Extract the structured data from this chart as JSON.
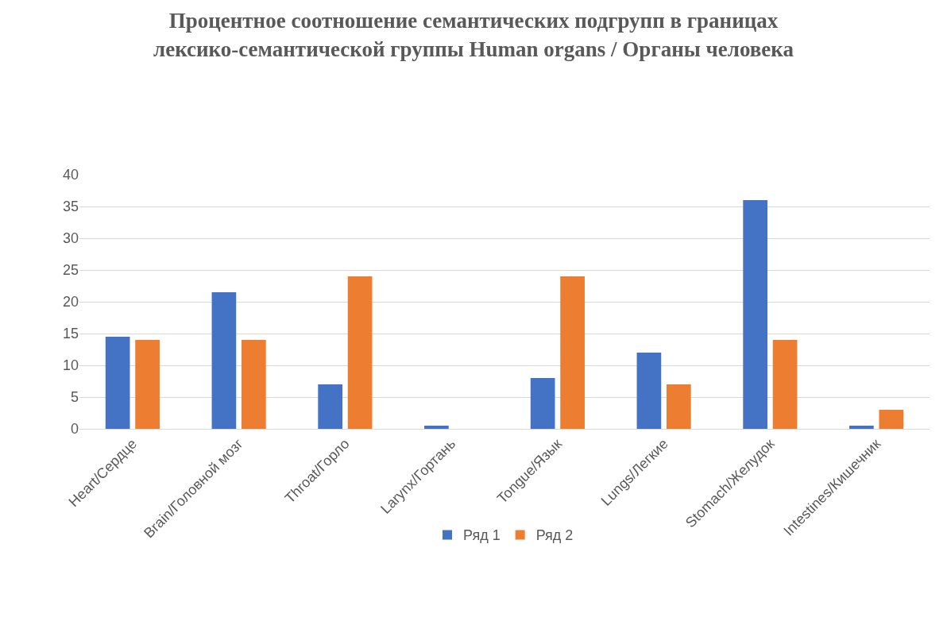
{
  "chart_data": {
    "type": "bar",
    "title": "Процентное соотношение семантических подгрупп в границах лексико-семантической группы Human organs / Органы человека",
    "categories": [
      "Heart/Сердце",
      "Brain/Головной мозг",
      "Throat/Горло",
      "Larynx/Гортань",
      "Tongue/Язык",
      "Lungs/Легкие",
      "Stomach/Желудок",
      "Intestines/Кишечник"
    ],
    "series": [
      {
        "name": "Ряд 1",
        "color": "#4472c4",
        "values": [
          14.5,
          21.5,
          7,
          0.5,
          8,
          12,
          36,
          0.5
        ]
      },
      {
        "name": "Ряд 2",
        "color": "#ed7d31",
        "values": [
          14,
          14,
          24,
          0,
          24,
          7,
          14,
          3
        ]
      }
    ],
    "ylim": [
      0,
      40
    ],
    "yticks": [
      0,
      5,
      10,
      15,
      20,
      25,
      30,
      35,
      40
    ],
    "grid": "y",
    "legend": "bottom"
  }
}
